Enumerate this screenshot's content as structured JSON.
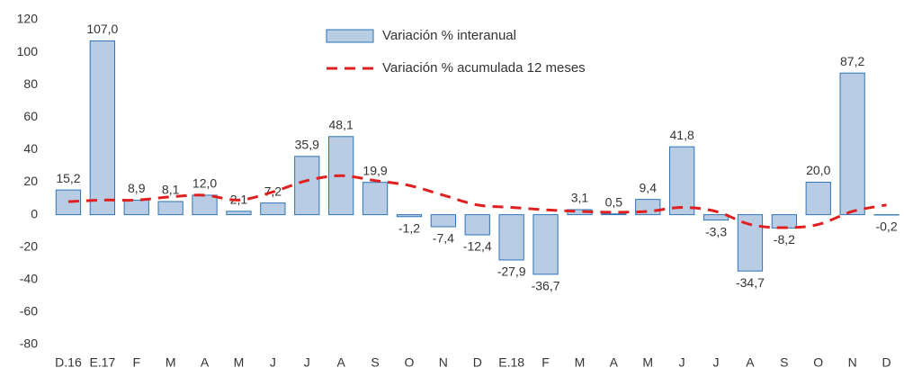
{
  "chart_data": {
    "type": "bar",
    "categories": [
      "D.16",
      "E.17",
      "F",
      "M",
      "A",
      "M",
      "J",
      "J",
      "A",
      "S",
      "O",
      "N",
      "D",
      "E.18",
      "F",
      "M",
      "A",
      "M",
      "J",
      "J",
      "A",
      "S",
      "O",
      "N",
      "D"
    ],
    "series": [
      {
        "name": "Variación % interanual",
        "color": "#b8cce4",
        "edge_color": "#2e75b6",
        "values": [
          15.2,
          107.0,
          8.9,
          8.1,
          12.0,
          2.1,
          7.2,
          35.9,
          48.1,
          19.9,
          -1.2,
          -7.4,
          -12.4,
          -27.9,
          -36.7,
          3.1,
          0.5,
          9.4,
          41.8,
          -3.3,
          -34.7,
          -8.2,
          20.0,
          87.2,
          -0.2
        ],
        "value_labels": [
          "15,2",
          "107,0",
          "8,9",
          "8,1",
          "12,0",
          "2,1",
          "7,2",
          "35,9",
          "48,1",
          "19,9",
          "-1,2",
          "-7,4",
          "-12,4",
          "-27,9",
          "-36,7",
          "3,1",
          "0,5",
          "9,4",
          "41,8",
          "-3,3",
          "-34,7",
          "-8,2",
          "20,0",
          "87,2",
          "-0,2"
        ]
      },
      {
        "name": "Variación % acumulada 12 meses",
        "type": "line",
        "color": "#e02020",
        "values": [
          8,
          9,
          9,
          11,
          12,
          9,
          14,
          21,
          24,
          21,
          18,
          12,
          6,
          4.5,
          3,
          2,
          1.5,
          2,
          4.5,
          2,
          -6,
          -8,
          -6,
          2,
          6
        ]
      }
    ],
    "ylim": [
      -80,
      120
    ],
    "yticks": [
      -80,
      -60,
      -40,
      -20,
      0,
      20,
      40,
      60,
      80,
      100,
      120
    ]
  }
}
